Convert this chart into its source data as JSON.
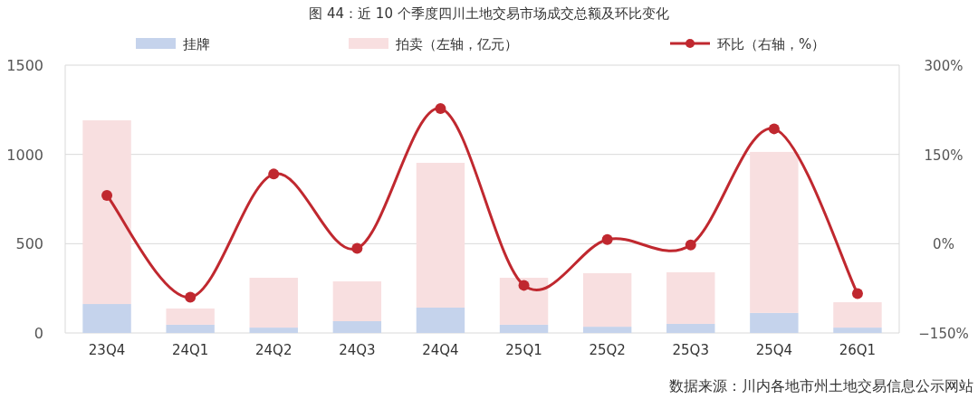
{
  "chart_data": {
    "type": "bar",
    "title": "图 44：近 10 个季度四川土地交易市场成交总额及环比变化",
    "categories": [
      "23Q4",
      "24Q1",
      "24Q2",
      "24Q3",
      "24Q4",
      "25Q1",
      "25Q2",
      "25Q3",
      "25Q4",
      "26Q1"
    ],
    "stacked": true,
    "series": [
      {
        "name": "挂牌",
        "color": "#c5d3ec",
        "values": [
          162,
          46,
          30,
          66,
          142,
          46,
          35,
          51,
          112,
          30
        ]
      },
      {
        "name": "拍卖（左轴，亿元）",
        "color": "#f8dfe0",
        "values": [
          1029,
          91,
          279,
          223,
          811,
          263,
          300,
          289,
          902,
          142
        ]
      },
      {
        "name": "环比（右轴，%）",
        "type": "line",
        "axis": "y2",
        "color": "#c0282f",
        "marker": "circle",
        "values": [
          81,
          -90,
          117,
          -8,
          227,
          -70,
          7,
          -2,
          193,
          -84
        ]
      }
    ],
    "ylim": [
      0,
      1500
    ],
    "yticks": [
      0,
      500,
      1000,
      1500
    ],
    "y2lim": [
      -150,
      300
    ],
    "y2ticks": [
      {
        "value": -150,
        "label": "−150%"
      },
      {
        "value": 0,
        "label": "0%"
      },
      {
        "value": 150,
        "label": "150%"
      },
      {
        "value": 300,
        "label": "300%"
      }
    ],
    "grid": "y",
    "legend": "top",
    "annotations": [
      "数据来源：川内各地市州土地交易信息公示网站"
    ]
  }
}
